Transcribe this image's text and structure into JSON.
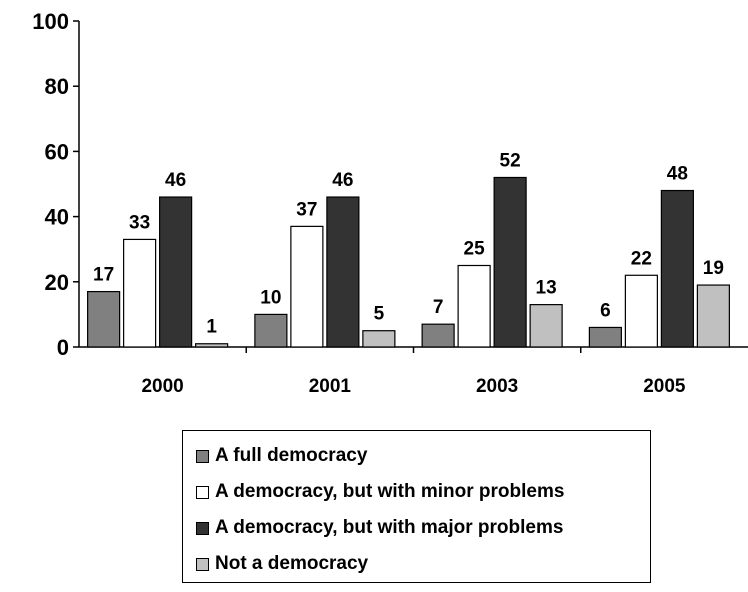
{
  "chart_data": {
    "type": "bar",
    "categories": [
      "2000",
      "2001",
      "2003",
      "2005"
    ],
    "series": [
      {
        "name": "A full democracy",
        "values": [
          17,
          10,
          7,
          6
        ],
        "color": "#808080"
      },
      {
        "name": "A democracy, but with minor problems",
        "values": [
          33,
          37,
          25,
          22
        ],
        "color": "#ffffff"
      },
      {
        "name": "A democracy, but with major problems",
        "values": [
          46,
          46,
          52,
          48
        ],
        "color": "#333333"
      },
      {
        "name": "Not a democracy",
        "values": [
          1,
          5,
          13,
          19
        ],
        "color": "#c0c0c0"
      }
    ],
    "y_ticks": [
      "0",
      "20",
      "40",
      "60",
      "80",
      "100"
    ],
    "ylim": [
      0,
      100
    ],
    "grid": false,
    "legend_position": "bottom"
  }
}
